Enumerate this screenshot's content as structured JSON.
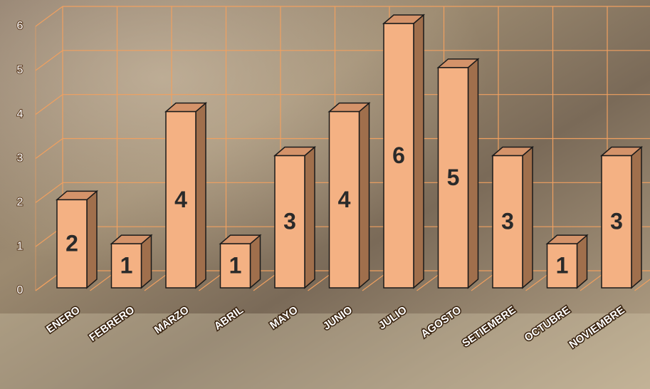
{
  "chart_data": {
    "type": "bar3d",
    "categories": [
      "ENERO",
      "FEBRERO",
      "MARZO",
      "ABRIL",
      "MAYO",
      "JUNIO",
      "JULIO",
      "AGOSTO",
      "SETIEMBRE",
      "OCTUBRE",
      "NOVIEMBRE"
    ],
    "values": [
      2,
      1,
      4,
      1,
      3,
      4,
      6,
      5,
      3,
      1,
      3
    ],
    "color": "#f4b183",
    "ylim": [
      0,
      6
    ],
    "yticks": [
      0,
      1,
      2,
      3,
      4,
      5,
      6
    ],
    "grid": true
  }
}
